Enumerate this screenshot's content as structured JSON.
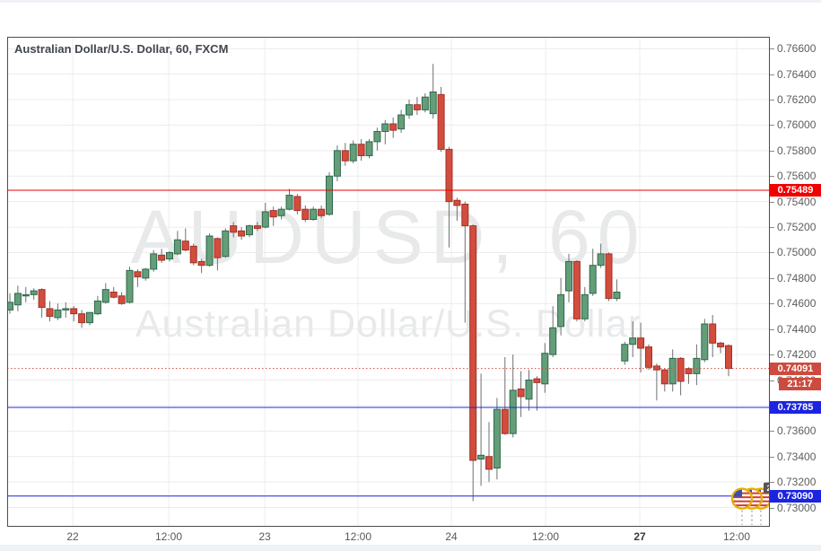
{
  "header": {
    "title": "Australian Dollar/U.S. Dollar, 60, FXCM"
  },
  "watermark": {
    "line1": "AUDUSD, 60",
    "line2": "Australian Dollar/U.S. Dollar"
  },
  "colors": {
    "up_fill": "#639e79",
    "up_border": "#2f684b",
    "down_fill": "#d24d3d",
    "down_border": "#a43027",
    "wick": "#6f6f6f",
    "grid": "#ececec",
    "frame": "#4d4d4d",
    "red_level_line": "#ee0000",
    "red_level_badge": "#f20000",
    "blue_level": "#1c24e0",
    "last_price": "#cc4b3e",
    "axis_text": "#5d5d5d",
    "flag_ring": "#e8b004",
    "flag_canton": "#3a50a8",
    "flag_stripe": "#d23b33",
    "event_badge_bg": "#555555"
  },
  "chart_data": {
    "type": "candlestick",
    "title": "Australian Dollar/U.S. Dollar, 60, FXCM",
    "symbol": "AUDUSD",
    "interval": "60",
    "exchange": "FXCM",
    "ylim": [
      0.72849,
      0.76693
    ],
    "grid": true,
    "price_labels": [
      {
        "p": 0.766,
        "t": "0.76600"
      },
      {
        "p": 0.764,
        "t": "0.76400"
      },
      {
        "p": 0.762,
        "t": "0.76200"
      },
      {
        "p": 0.76,
        "t": "0.76000"
      },
      {
        "p": 0.758,
        "t": "0.75800"
      },
      {
        "p": 0.756,
        "t": "0.75600"
      },
      {
        "p": 0.754,
        "t": "0.75400"
      },
      {
        "p": 0.752,
        "t": "0.75200"
      },
      {
        "p": 0.75,
        "t": "0.75000"
      },
      {
        "p": 0.748,
        "t": "0.74800"
      },
      {
        "p": 0.746,
        "t": "0.74600"
      },
      {
        "p": 0.744,
        "t": "0.74400"
      },
      {
        "p": 0.742,
        "t": "0.74200"
      },
      {
        "p": 0.74,
        "t": "0.74000"
      },
      {
        "p": 0.738,
        "t": "0.73800"
      },
      {
        "p": 0.736,
        "t": "0.73600"
      },
      {
        "p": 0.734,
        "t": "0.73400"
      },
      {
        "p": 0.732,
        "t": "0.73200"
      },
      {
        "p": 0.73,
        "t": "0.73000"
      }
    ],
    "time_labels": [
      {
        "x": 81,
        "t": "22",
        "bold": false
      },
      {
        "x": 188,
        "t": "12:00",
        "bold": false
      },
      {
        "x": 295,
        "t": "23",
        "bold": false
      },
      {
        "x": 399,
        "t": "12:00",
        "bold": false
      },
      {
        "x": 503,
        "t": "24",
        "bold": false
      },
      {
        "x": 608,
        "t": "12:00",
        "bold": false
      },
      {
        "x": 713,
        "t": "27",
        "bold": true
      },
      {
        "x": 821,
        "t": "12:00",
        "bold": false
      }
    ],
    "levels": [
      {
        "price": 0.75489,
        "label": "0.75489",
        "style": "solid",
        "kind": "red"
      },
      {
        "price": 0.73785,
        "label": "0.73785",
        "style": "solid",
        "kind": "blue"
      },
      {
        "price": 0.7309,
        "label": "0.73090",
        "style": "solid",
        "kind": "blue"
      }
    ],
    "last_price": {
      "value": 0.74091,
      "label": "0.74091",
      "countdown": "21:17",
      "style": "dotted"
    },
    "candles": [
      [
        0.7455,
        0.7468,
        0.7452,
        0.7461
      ],
      [
        0.7459,
        0.7474,
        0.7454,
        0.7468
      ],
      [
        0.7466,
        0.7473,
        0.7461,
        0.7467
      ],
      [
        0.7467,
        0.7472,
        0.7463,
        0.747
      ],
      [
        0.7471,
        0.7472,
        0.7449,
        0.7457
      ],
      [
        0.7456,
        0.7462,
        0.7446,
        0.745
      ],
      [
        0.7449,
        0.746,
        0.7447,
        0.7455
      ],
      [
        0.7455,
        0.7461,
        0.7449,
        0.7456
      ],
      [
        0.7456,
        0.7458,
        0.7446,
        0.7452
      ],
      [
        0.7452,
        0.7455,
        0.7441,
        0.7445
      ],
      [
        0.7445,
        0.7453,
        0.7443,
        0.7453
      ],
      [
        0.7452,
        0.7466,
        0.7451,
        0.7462
      ],
      [
        0.7461,
        0.7476,
        0.746,
        0.7471
      ],
      [
        0.7469,
        0.7473,
        0.7464,
        0.7465
      ],
      [
        0.7466,
        0.7469,
        0.7459,
        0.746
      ],
      [
        0.7461,
        0.7489,
        0.746,
        0.7486
      ],
      [
        0.7485,
        0.7487,
        0.7473,
        0.7481
      ],
      [
        0.748,
        0.7488,
        0.7478,
        0.7487
      ],
      [
        0.7487,
        0.7502,
        0.7485,
        0.7499
      ],
      [
        0.7498,
        0.7503,
        0.7492,
        0.7494
      ],
      [
        0.7495,
        0.7501,
        0.7493,
        0.75
      ],
      [
        0.7499,
        0.7517,
        0.7498,
        0.751
      ],
      [
        0.7509,
        0.7519,
        0.7501,
        0.7502
      ],
      [
        0.7505,
        0.7507,
        0.749,
        0.7492
      ],
      [
        0.7493,
        0.7495,
        0.7484,
        0.749
      ],
      [
        0.749,
        0.7515,
        0.7489,
        0.7513
      ],
      [
        0.7511,
        0.7512,
        0.7486,
        0.7496
      ],
      [
        0.7497,
        0.7519,
        0.7496,
        0.7517
      ],
      [
        0.7521,
        0.7524,
        0.7512,
        0.7516
      ],
      [
        0.7517,
        0.752,
        0.751,
        0.7513
      ],
      [
        0.7514,
        0.7522,
        0.7512,
        0.7521
      ],
      [
        0.7521,
        0.7524,
        0.7517,
        0.7519
      ],
      [
        0.752,
        0.7539,
        0.7519,
        0.7532
      ],
      [
        0.7533,
        0.7536,
        0.7521,
        0.7528
      ],
      [
        0.7529,
        0.7536,
        0.7526,
        0.7534
      ],
      [
        0.7534,
        0.755,
        0.7533,
        0.7545
      ],
      [
        0.7544,
        0.7546,
        0.753,
        0.7533
      ],
      [
        0.7534,
        0.7537,
        0.7524,
        0.7526
      ],
      [
        0.7526,
        0.7536,
        0.7525,
        0.7534
      ],
      [
        0.7534,
        0.7537,
        0.7527,
        0.7529
      ],
      [
        0.753,
        0.7563,
        0.7529,
        0.756
      ],
      [
        0.756,
        0.7584,
        0.7556,
        0.758
      ],
      [
        0.758,
        0.7586,
        0.7568,
        0.7572
      ],
      [
        0.7572,
        0.7588,
        0.757,
        0.7585
      ],
      [
        0.7585,
        0.7589,
        0.7572,
        0.7576
      ],
      [
        0.7576,
        0.7589,
        0.7574,
        0.7587
      ],
      [
        0.7587,
        0.7598,
        0.758,
        0.7595
      ],
      [
        0.7595,
        0.7604,
        0.7585,
        0.7601
      ],
      [
        0.7601,
        0.7606,
        0.759,
        0.7596
      ],
      [
        0.7597,
        0.7612,
        0.7594,
        0.7608
      ],
      [
        0.7608,
        0.762,
        0.7605,
        0.7616
      ],
      [
        0.7616,
        0.7622,
        0.7608,
        0.7612
      ],
      [
        0.7612,
        0.7625,
        0.761,
        0.7622
      ],
      [
        0.7609,
        0.7648,
        0.7605,
        0.7626
      ],
      [
        0.7624,
        0.763,
        0.7579,
        0.7581
      ],
      [
        0.7581,
        0.7583,
        0.7504,
        0.754
      ],
      [
        0.7541,
        0.7543,
        0.7525,
        0.7537
      ],
      [
        0.7538,
        0.754,
        0.7445,
        0.7521
      ],
      [
        0.7521,
        0.7522,
        0.7305,
        0.7337
      ],
      [
        0.7338,
        0.7405,
        0.7317,
        0.7341
      ],
      [
        0.734,
        0.7367,
        0.732,
        0.733
      ],
      [
        0.7331,
        0.7386,
        0.7322,
        0.7377
      ],
      [
        0.7377,
        0.7418,
        0.7357,
        0.7358
      ],
      [
        0.7358,
        0.742,
        0.7355,
        0.7392
      ],
      [
        0.7393,
        0.7407,
        0.7371,
        0.7387
      ],
      [
        0.7385,
        0.7408,
        0.7376,
        0.74
      ],
      [
        0.7401,
        0.7403,
        0.7376,
        0.7398
      ],
      [
        0.7397,
        0.7429,
        0.739,
        0.7421
      ],
      [
        0.742,
        0.7458,
        0.7418,
        0.7441
      ],
      [
        0.7442,
        0.748,
        0.7435,
        0.7467
      ],
      [
        0.747,
        0.7499,
        0.7461,
        0.7493
      ],
      [
        0.7493,
        0.7494,
        0.7446,
        0.7448
      ],
      [
        0.7448,
        0.7473,
        0.7446,
        0.7467
      ],
      [
        0.7468,
        0.7503,
        0.7466,
        0.749
      ],
      [
        0.749,
        0.7507,
        0.7488,
        0.7499
      ],
      [
        0.7499,
        0.75,
        0.7462,
        0.7464
      ],
      [
        0.7464,
        0.7479,
        0.7462,
        0.7469
      ],
      [
        0.7415,
        0.743,
        0.7412,
        0.7428
      ],
      [
        0.7428,
        0.7446,
        0.7418,
        0.7433
      ],
      [
        0.7433,
        0.7445,
        0.7406,
        0.7425
      ],
      [
        0.7426,
        0.7428,
        0.7408,
        0.741
      ],
      [
        0.7411,
        0.7413,
        0.7384,
        0.7408
      ],
      [
        0.7408,
        0.7409,
        0.7391,
        0.7397
      ],
      [
        0.7397,
        0.7424,
        0.7391,
        0.7417
      ],
      [
        0.7417,
        0.7418,
        0.7388,
        0.7399
      ],
      [
        0.7409,
        0.741,
        0.7397,
        0.7405
      ],
      [
        0.7405,
        0.7428,
        0.7396,
        0.7417
      ],
      [
        0.7416,
        0.7448,
        0.7414,
        0.7444
      ],
      [
        0.7444,
        0.7451,
        0.7418,
        0.7429
      ],
      [
        0.7429,
        0.743,
        0.7421,
        0.7426
      ],
      [
        0.7427,
        0.7428,
        0.7403,
        0.74091
      ]
    ]
  },
  "event_marker": {
    "badge_count": "2",
    "flag_count": 3,
    "country": "us-flag"
  }
}
